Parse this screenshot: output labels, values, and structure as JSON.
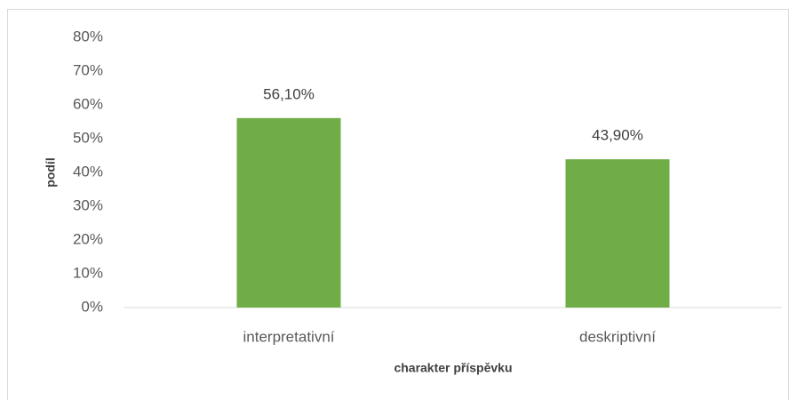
{
  "chart_data": {
    "type": "bar",
    "x_label": "charakter příspěvku",
    "y_label": "podíl",
    "categories": [
      "interpretativní",
      "deskriptivní"
    ],
    "values": [
      56.1,
      43.9
    ],
    "value_labels": [
      "56,10%",
      "43,90%"
    ],
    "color": "#70ad47",
    "ylim": [
      0,
      80
    ],
    "yticks": [
      {
        "value": 0,
        "label": "0%"
      },
      {
        "value": 10,
        "label": "10%"
      },
      {
        "value": 20,
        "label": "20%"
      },
      {
        "value": 30,
        "label": "30%"
      },
      {
        "value": 40,
        "label": "40%"
      },
      {
        "value": 50,
        "label": "50%"
      },
      {
        "value": 60,
        "label": "60%"
      },
      {
        "value": 70,
        "label": "70%"
      },
      {
        "value": 80,
        "label": "80%"
      }
    ],
    "grid": false
  }
}
